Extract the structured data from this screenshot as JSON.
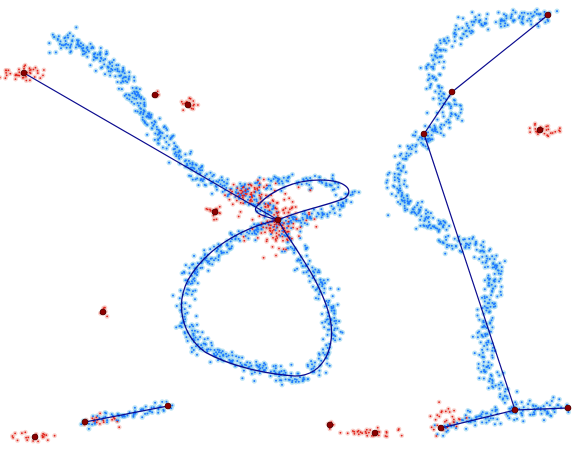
{
  "figure": {
    "description_text": "",
    "colors": {
      "background": "#ffffff",
      "sample_points": "#1e78ff",
      "sample_halo": "#87ceeb",
      "noise_points": "#e0201a",
      "noise_halo": "#f2a59b",
      "skeleton_edges": "#0b0b8f",
      "graph_nodes": "#8b0000",
      "node_edge": "#3a0000"
    }
  }
}
